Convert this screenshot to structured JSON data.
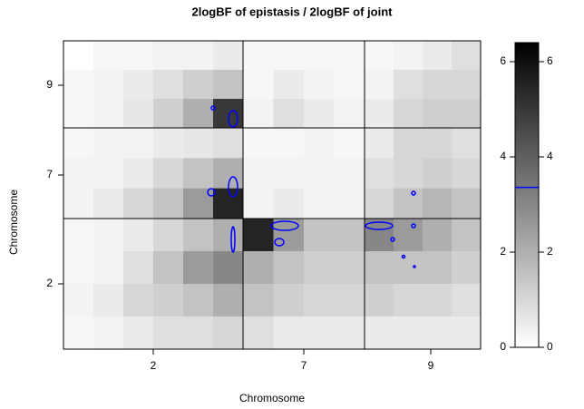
{
  "chart_data": {
    "type": "heatmap",
    "title": "2logBF of epistasis / 2logBF of joint",
    "x_label": "Chromosome",
    "y_label": "Chromosome",
    "x_categories": [
      "2",
      "7",
      "9"
    ],
    "y_categories": [
      "9",
      "7",
      "2"
    ],
    "z": [
      [
        [
          [
            0,
            0.2,
            0.2,
            0.3,
            0.3,
            0.5
          ],
          [
            0.2,
            0.3,
            0.5,
            0.8,
            1.2,
            1.5
          ],
          [
            0.2,
            0.3,
            0.6,
            1.2,
            2,
            5
          ]
        ],
        [
          [
            0.2,
            0.2,
            0.2,
            0.2
          ],
          [
            0.2,
            0.5,
            0.3,
            0.2
          ],
          [
            0.3,
            0.8,
            0.5,
            0.3
          ]
        ],
        [
          [
            0.2,
            0.3,
            0.5,
            0.8
          ],
          [
            0.3,
            0.8,
            1,
            1
          ],
          [
            0.5,
            1,
            1.2,
            1.2
          ]
        ]
      ],
      [
        [
          [
            0.2,
            0.3,
            0.3,
            0.5,
            0.6,
            0.8
          ],
          [
            0.3,
            0.3,
            0.5,
            1,
            1.5,
            2
          ],
          [
            0.3,
            0.5,
            1,
            1.5,
            2.5,
            5.5
          ]
        ],
        [
          [
            0.2,
            0.2,
            0.3,
            0.2
          ],
          [
            0.3,
            0.3,
            0.3,
            0.3
          ],
          [
            0.3,
            0.5,
            0.3,
            0.3
          ]
        ],
        [
          [
            0.5,
            1,
            1,
            0.8
          ],
          [
            0.8,
            1,
            1.2,
            1
          ],
          [
            1,
            1.5,
            1.8,
            1.5
          ]
        ]
      ],
      [
        [
          [
            0.2,
            0.3,
            0.5,
            1,
            1.5,
            2
          ],
          [
            0.2,
            0.3,
            0.8,
            1.5,
            2.5,
            3
          ],
          [
            0.3,
            0.5,
            1,
            1.2,
            1.5,
            2
          ],
          [
            0.2,
            0.3,
            0.5,
            0.8,
            0.8,
            1
          ]
        ],
        [
          [
            5.5,
            2.5,
            1.5,
            1.5
          ],
          [
            2,
            1.5,
            1.2,
            1.2
          ],
          [
            1.5,
            1.2,
            1,
            1
          ],
          [
            0.8,
            0.5,
            0.5,
            0.5
          ]
        ],
        [
          [
            3,
            2.5,
            2,
            1.5
          ],
          [
            1.5,
            1.5,
            1.5,
            1.2
          ],
          [
            1.2,
            1,
            1,
            0.8
          ],
          [
            0.5,
            0.5,
            0.5,
            0.5
          ]
        ]
      ]
    ],
    "colorbar_lim": [
      0,
      6.4
    ],
    "colorbar_ticks": [
      0,
      2,
      4,
      6
    ],
    "threshold": 3.36,
    "contour_color": "#0000ff"
  }
}
